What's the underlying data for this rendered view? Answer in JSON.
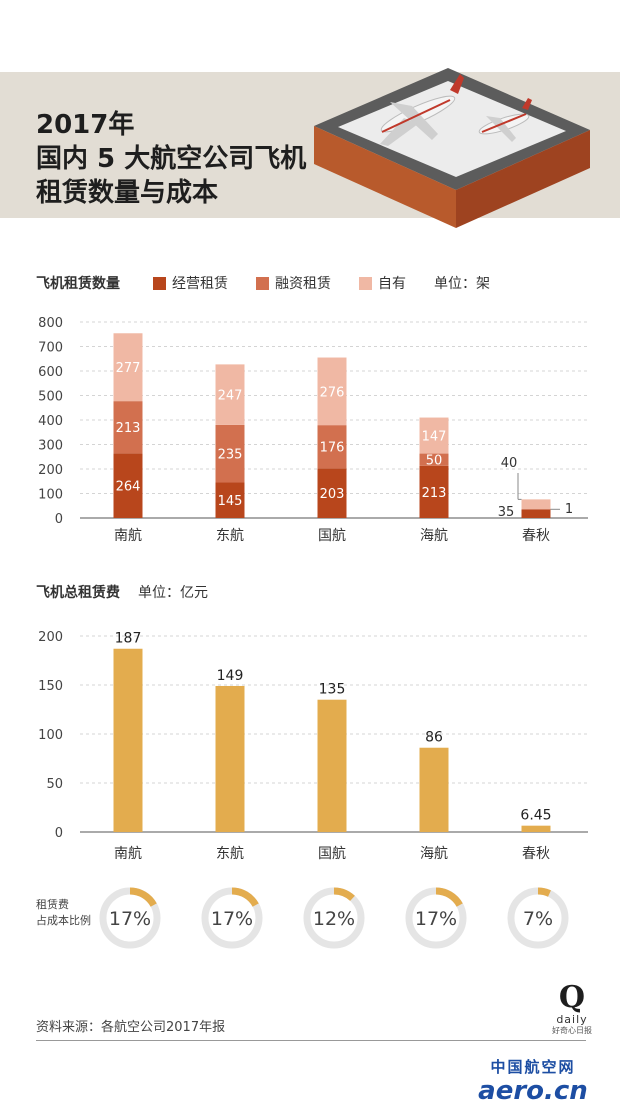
{
  "header": {
    "title_line1": "2017年",
    "title_line2": "国内 5 大航空公司飞机",
    "title_line3": "租赁数量与成本"
  },
  "chart_data": [
    {
      "type": "bar",
      "stacked": true,
      "title": "飞机租赁数量",
      "unit": "单位：架",
      "categories": [
        "南航",
        "东航",
        "国航",
        "海航",
        "春秋"
      ],
      "series": [
        {
          "name": "经营租赁",
          "color": "#b8461c",
          "values": [
            264,
            145,
            203,
            213,
            35
          ]
        },
        {
          "name": "融资租赁",
          "color": "#d2704f",
          "values": [
            213,
            235,
            176,
            50,
            1
          ]
        },
        {
          "name": "自有",
          "color": "#f0b8a4",
          "values": [
            277,
            247,
            276,
            147,
            40
          ]
        }
      ],
      "y_ticks": [
        "800",
        "700",
        "600",
        "500",
        "400",
        "300",
        "200",
        "100",
        "0"
      ],
      "ylim": [
        0,
        800
      ],
      "grid": true,
      "legend_position": "top"
    },
    {
      "type": "bar",
      "title": "飞机总租赁费",
      "unit": "单位：亿元",
      "categories": [
        "南航",
        "东航",
        "国航",
        "海航",
        "春秋"
      ],
      "values": [
        187,
        149,
        135,
        86,
        6.45
      ],
      "value_labels": [
        "187",
        "149",
        "135",
        "86",
        "6.45"
      ],
      "color": "#e3ac4e",
      "y_ticks": [
        "200",
        "150",
        "100",
        "50",
        "0"
      ],
      "ylim": [
        0,
        200
      ],
      "grid": true
    }
  ],
  "cost_ratio": {
    "label_line1": "租赁费",
    "label_line2": "占成本比例",
    "items": [
      {
        "airline": "南航",
        "label": "17%",
        "value": 17
      },
      {
        "airline": "东航",
        "label": "17%",
        "value": 17
      },
      {
        "airline": "国航",
        "label": "12%",
        "value": 12
      },
      {
        "airline": "海航",
        "label": "17%",
        "value": 17
      },
      {
        "airline": "春秋",
        "label": "7%",
        "value": 7
      }
    ]
  },
  "footer": {
    "source": "资料来源：各航空公司2017年报",
    "logo_letter": "Q",
    "logo_word": "daily",
    "logo_tagline": "好奇心日报",
    "watermark_cn": "中国航空网",
    "watermark_en": "aero.cn"
  },
  "colors": {
    "operating_lease": "#b8461c",
    "finance_lease": "#d2704f",
    "owned": "#f0b8a4",
    "rent_bar": "#e3ac4e",
    "banner": "#e2ddd4"
  }
}
